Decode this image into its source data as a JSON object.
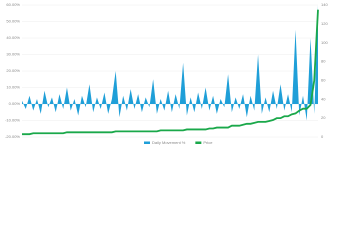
{
  "chart_data": {
    "type": "area-line",
    "series": [
      {
        "name": "Daily Movement %",
        "color": "#1f9fd8",
        "type": "area",
        "axis": "y",
        "values": [
          2,
          -3,
          5,
          -4,
          3,
          -6,
          8,
          -2,
          4,
          -5,
          6,
          -3,
          10,
          -4,
          3,
          -7,
          5,
          -2,
          12,
          -5,
          4,
          -3,
          7,
          -6,
          3,
          20,
          -8,
          5,
          -4,
          9,
          -3,
          6,
          -5,
          4,
          -2,
          15,
          -6,
          3,
          -4,
          8,
          -5,
          6,
          -3,
          25,
          -7,
          4,
          -5,
          7,
          -3,
          10,
          -4,
          5,
          -6,
          3,
          -2,
          18,
          -5,
          4,
          -3,
          6,
          -8,
          5,
          -4,
          30,
          -6,
          4,
          -5,
          8,
          -3,
          12,
          -4,
          6,
          -5,
          45,
          -7,
          5,
          -10,
          40,
          -6,
          60
        ]
      },
      {
        "name": "Price",
        "color": "#1aa84a",
        "type": "line",
        "axis": "y2",
        "values": [
          3,
          3,
          3,
          4,
          4,
          4,
          4,
          4,
          4,
          4,
          4,
          4,
          5,
          5,
          5,
          5,
          5,
          5,
          5,
          5,
          5,
          5,
          5,
          5,
          5,
          6,
          6,
          6,
          6,
          6,
          6,
          6,
          6,
          6,
          6,
          6,
          6,
          7,
          7,
          7,
          7,
          7,
          7,
          7,
          8,
          8,
          8,
          8,
          8,
          8,
          9,
          9,
          10,
          10,
          10,
          10,
          12,
          12,
          12,
          13,
          14,
          14,
          15,
          16,
          16,
          16,
          17,
          18,
          20,
          20,
          22,
          22,
          24,
          25,
          28,
          30,
          30,
          34,
          60,
          135
        ]
      }
    ],
    "ylim": [
      -20,
      60
    ],
    "yticks": [
      {
        "value": -20,
        "label": "-20.00%"
      },
      {
        "value": -10,
        "label": "-10.00%"
      },
      {
        "value": 0,
        "label": "0.00%"
      },
      {
        "value": 10,
        "label": "10.00%"
      },
      {
        "value": 20,
        "label": "20.00%"
      },
      {
        "value": 30,
        "label": "30.00%"
      },
      {
        "value": 40,
        "label": "40.00%"
      },
      {
        "value": 50,
        "label": "50.00%"
      },
      {
        "value": 60,
        "label": "60.00%"
      }
    ],
    "y2lim": [
      0,
      140
    ],
    "y2ticks": [
      0,
      20,
      40,
      60,
      80,
      100,
      120,
      140
    ],
    "grid": true,
    "legend": "bottom"
  }
}
